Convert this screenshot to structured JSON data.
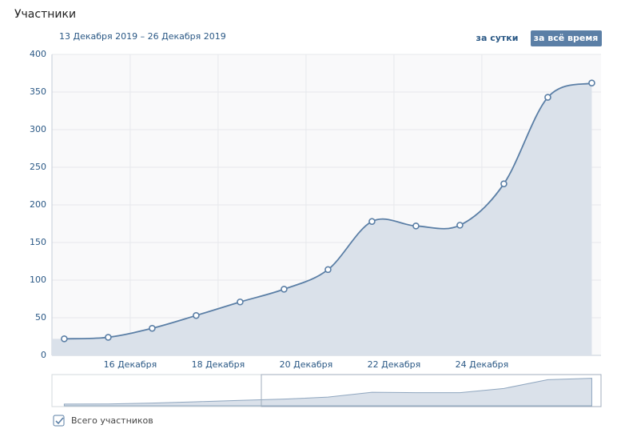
{
  "header": {
    "title": "Участники",
    "range": "13 Декабря 2019 – 26 Декабря 2019",
    "buttons": [
      "за сутки",
      "за всё время"
    ]
  },
  "chart_data": {
    "type": "area",
    "x": [
      14.5,
      15.5,
      16.5,
      17.5,
      18.5,
      19.5,
      20.5,
      21.5,
      22.5,
      23.5,
      24.5,
      25.5,
      26.5
    ],
    "series": [
      {
        "name": "Всего участников",
        "color": "#5b7fa6",
        "values": [
          22,
          24,
          36,
          53,
          71,
          88,
          114,
          178,
          172,
          173,
          228,
          343,
          362
        ]
      }
    ],
    "xlim": [
      14.22,
      26.71
    ],
    "ylim": [
      0,
      400
    ],
    "yticks": [
      0,
      50,
      100,
      150,
      200,
      250,
      300,
      350,
      400
    ],
    "xticks": [
      {
        "value": 16,
        "label": "16 Декабря"
      },
      {
        "value": 18,
        "label": "18 Декабря"
      },
      {
        "value": 20,
        "label": "20 Декабря"
      },
      {
        "value": 22,
        "label": "22 Декабря"
      },
      {
        "value": 24,
        "label": "24 Декабря"
      }
    ],
    "grid": true
  }
}
